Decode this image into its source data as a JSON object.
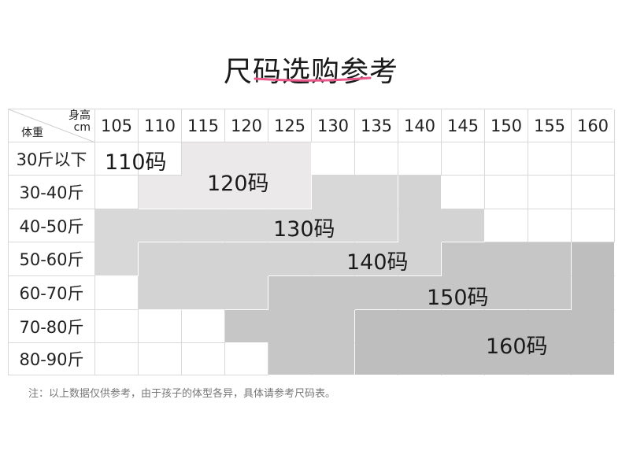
{
  "title": "尺码选购参考",
  "accent_color": "#e8588a",
  "corner": {
    "height_label": "身高",
    "height_unit": "cm",
    "weight_label": "体重"
  },
  "heights": [
    "105",
    "110",
    "115",
    "120",
    "125",
    "130",
    "135",
    "140",
    "145",
    "150",
    "155",
    "160"
  ],
  "weights": [
    "30斤以下",
    "30-40斤",
    "40-50斤",
    "50-60斤",
    "60-70斤",
    "70-80斤",
    "80-90斤"
  ],
  "size_grid": [
    [
      "110",
      "110",
      "120",
      "120",
      "120",
      "",
      "",
      "",
      "",
      "",
      "",
      ""
    ],
    [
      "",
      "120",
      "120",
      "120",
      "120",
      "130",
      "130",
      "140",
      "",
      "",
      "",
      ""
    ],
    [
      "130",
      "130",
      "130",
      "130",
      "130",
      "130",
      "130",
      "140",
      "140",
      "",
      "",
      ""
    ],
    [
      "130",
      "140",
      "140",
      "140",
      "140",
      "140",
      "140",
      "140",
      "150",
      "150",
      "150",
      "160"
    ],
    [
      "",
      "140",
      "140",
      "140",
      "150",
      "150",
      "150",
      "150",
      "150",
      "150",
      "150",
      "160"
    ],
    [
      "",
      "",
      "",
      "150",
      "150",
      "150",
      "160",
      "160",
      "160",
      "160",
      "160",
      "160"
    ],
    [
      "",
      "",
      "",
      "",
      "150",
      "150",
      "160",
      "160",
      "160",
      "160",
      "160",
      "160"
    ]
  ],
  "size_colors": {
    "110": "#ffffff",
    "120": "#ebe9ea",
    "130": "#d9d8d9",
    "140": "#d3d3d3",
    "150": "#c7c6c7",
    "160": "#bfbebf"
  },
  "size_labels": {
    "s110": "110码",
    "s120": "120码",
    "s130": "130码",
    "s140": "140码",
    "s150": "150码",
    "s160": "160码"
  },
  "note": "注：以上数据仅供参考，由于孩子的体型各异，具体请参考尺码表。"
}
